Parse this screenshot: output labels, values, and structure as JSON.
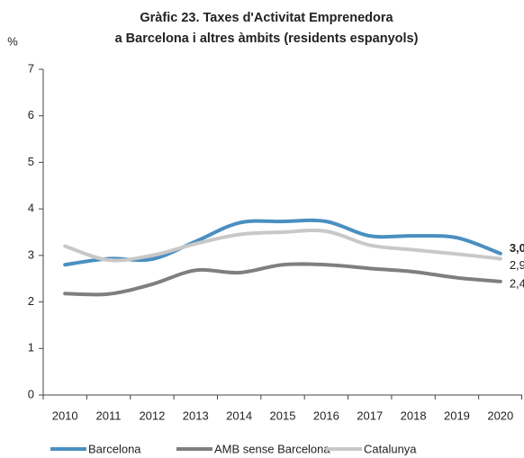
{
  "chart_data": {
    "type": "line",
    "title": "Gràfic 23. Taxes d'Activitat Emprenedora",
    "subtitle": "a Barcelona i altres àmbits (residents espanyols)",
    "y_label": "%",
    "categories": [
      "2010",
      "2011",
      "2012",
      "2013",
      "2014",
      "2015",
      "2016",
      "2017",
      "2018",
      "2019",
      "2020"
    ],
    "series": [
      {
        "name": "Barcelona",
        "color": "#4a8fc1",
        "values": [
          2.8,
          2.93,
          2.92,
          3.3,
          3.7,
          3.73,
          3.73,
          3.42,
          3.42,
          3.38,
          3.04
        ],
        "value_labels": [
          null,
          null,
          null,
          null,
          null,
          null,
          null,
          null,
          null,
          null,
          "3,0"
        ]
      },
      {
        "name": "AMB sense Barcelona",
        "color": "#7f7f7f",
        "values": [
          2.18,
          2.17,
          2.38,
          2.68,
          2.63,
          2.8,
          2.8,
          2.72,
          2.65,
          2.52,
          2.44
        ],
        "value_labels": [
          null,
          null,
          null,
          null,
          null,
          null,
          null,
          null,
          null,
          null,
          "2,4"
        ]
      },
      {
        "name": "Catalunya",
        "color": "#c8c8c8",
        "values": [
          3.2,
          2.9,
          3.0,
          3.25,
          3.45,
          3.5,
          3.52,
          3.22,
          3.12,
          3.03,
          2.93
        ],
        "value_labels": [
          null,
          null,
          null,
          null,
          null,
          null,
          null,
          null,
          null,
          null,
          "2,9"
        ]
      }
    ],
    "ylim": [
      0,
      7
    ],
    "yticks": [
      0,
      1,
      2,
      3,
      4,
      5,
      6,
      7
    ],
    "grid": false,
    "legend": "bottom"
  }
}
